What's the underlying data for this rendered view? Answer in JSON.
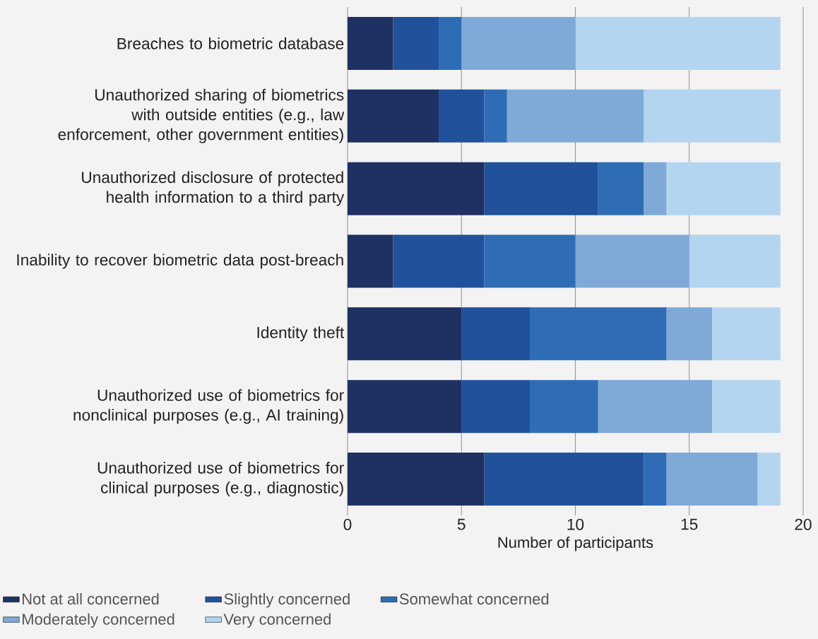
{
  "chart_data": {
    "type": "bar",
    "orientation": "horizontal",
    "stacked": true,
    "categories": [
      "Breaches to biometric database",
      "Unauthorized sharing of biometrics with outside entities (e.g., law enforcement, other government entities)",
      "Unauthorized disclosure of protected health information to a third party",
      "Inability to recover biometric data post-breach",
      "Identity theft",
      "Unauthorized use of biometrics for nonclinical purposes (e.g., AI training)",
      "Unauthorized use of biometrics for clinical purposes (e.g., diagnostic)"
    ],
    "series": [
      {
        "name": "Not at all concerned",
        "color": "#1f3162",
        "values": [
          2,
          4,
          6,
          2,
          5,
          5,
          6
        ]
      },
      {
        "name": "Slightly concerned",
        "color": "#21519b",
        "values": [
          2,
          2,
          5,
          4,
          3,
          3,
          7
        ]
      },
      {
        "name": "Somewhat concerned",
        "color": "#2e6db5",
        "values": [
          1,
          1,
          2,
          4,
          6,
          3,
          1
        ]
      },
      {
        "name": "Moderately concerned",
        "color": "#7faad8",
        "values": [
          5,
          6,
          1,
          5,
          2,
          5,
          4
        ]
      },
      {
        "name": "Very concerned",
        "color": "#b4d5f0",
        "values": [
          9,
          6,
          5,
          4,
          3,
          3,
          1
        ]
      }
    ],
    "xlabel": "Number of participants",
    "xlim": [
      0,
      20
    ],
    "xticks": [
      0,
      5,
      10,
      15,
      20
    ],
    "grid": "x",
    "legend": "bottom"
  }
}
